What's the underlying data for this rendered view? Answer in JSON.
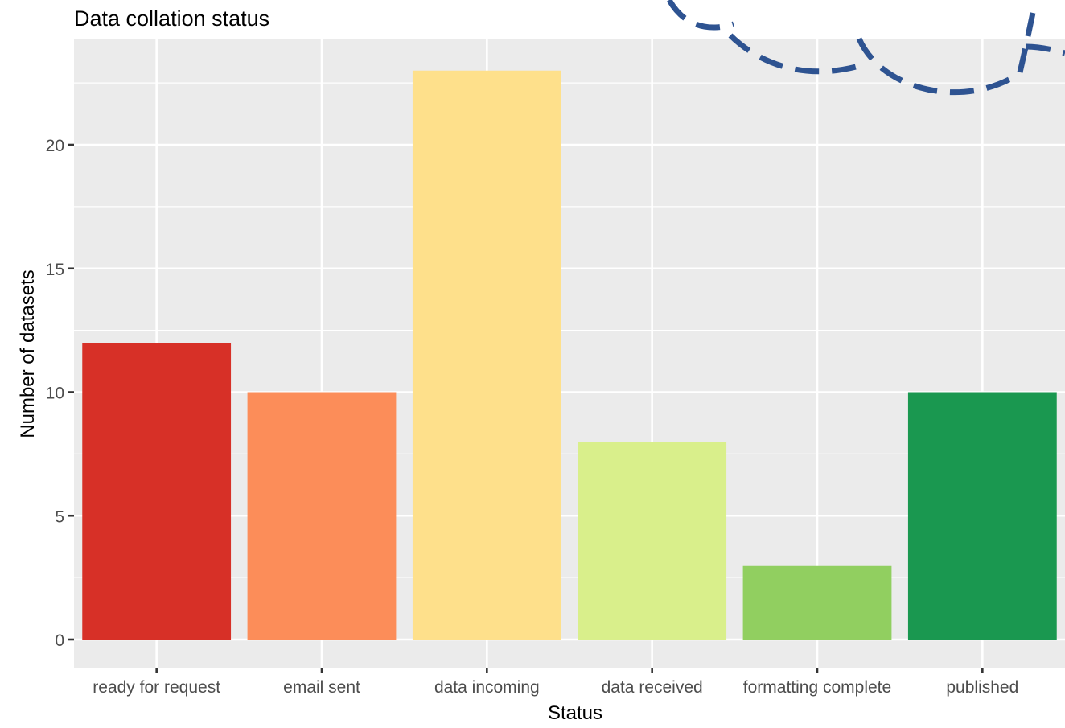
{
  "chart_data": {
    "type": "bar",
    "title": "Data collation status",
    "xlabel": "Status",
    "ylabel": "Number of datasets",
    "categories": [
      "ready for request",
      "email sent",
      "data incoming",
      "data received",
      "formatting complete",
      "published"
    ],
    "values": [
      12,
      10,
      23,
      8,
      3,
      10
    ],
    "colors": [
      "#d73027",
      "#fc8d59",
      "#fee08b",
      "#d9ef8b",
      "#91cf60",
      "#1a9850"
    ],
    "ylim": [
      0,
      24
    ],
    "yticks": [
      0,
      5,
      10,
      15,
      20
    ],
    "grid": true,
    "legend": "none",
    "panel_background": "#ebebeb",
    "overlay_stroke_color": "#2e5391"
  }
}
